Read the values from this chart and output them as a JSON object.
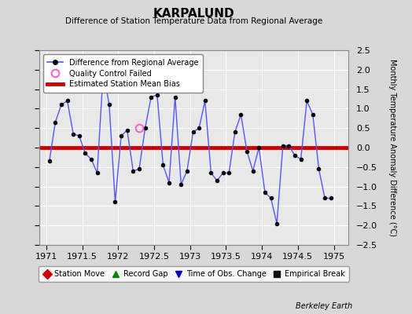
{
  "title": "KARPALUND",
  "subtitle": "Difference of Station Temperature Data from Regional Average",
  "ylabel": "Monthly Temperature Anomaly Difference (°C)",
  "xlim": [
    1970.9,
    1975.2
  ],
  "ylim": [
    -2.5,
    2.5
  ],
  "xticks": [
    1971,
    1971.5,
    1972,
    1972.5,
    1973,
    1973.5,
    1974,
    1974.5,
    1975
  ],
  "yticks": [
    -2.5,
    -2.0,
    -1.5,
    -1.0,
    -0.5,
    0,
    0.5,
    1.0,
    1.5,
    2.0,
    2.5
  ],
  "bias_line": 0.0,
  "bias_color": "#cc0000",
  "line_color": "#5555ff",
  "marker_color": "#000000",
  "background_color": "#e8e8e8",
  "fig_background": "#d8d8d8",
  "grid_color": "#ffffff",
  "x_data": [
    1971.042,
    1971.125,
    1971.208,
    1971.292,
    1971.375,
    1971.458,
    1971.542,
    1971.625,
    1971.708,
    1971.792,
    1971.875,
    1971.958,
    1972.042,
    1972.125,
    1972.208,
    1972.292,
    1972.375,
    1972.458,
    1972.542,
    1972.625,
    1972.708,
    1972.792,
    1972.875,
    1972.958,
    1973.042,
    1973.125,
    1973.208,
    1973.292,
    1973.375,
    1973.458,
    1973.542,
    1973.625,
    1973.708,
    1973.792,
    1973.875,
    1973.958,
    1974.042,
    1974.125,
    1974.208,
    1974.292,
    1974.375,
    1974.458,
    1974.542,
    1974.625,
    1974.708,
    1974.792,
    1974.875,
    1974.958
  ],
  "y_data": [
    -0.35,
    0.65,
    1.1,
    1.2,
    0.35,
    0.3,
    -0.15,
    -0.3,
    -0.65,
    1.95,
    1.1,
    -1.4,
    0.3,
    0.45,
    -0.6,
    -0.55,
    0.5,
    1.3,
    1.35,
    -0.45,
    -0.9,
    1.3,
    -0.95,
    -0.6,
    0.4,
    0.5,
    1.2,
    -0.65,
    -0.85,
    -0.65,
    -0.65,
    0.4,
    0.85,
    -0.1,
    -0.6,
    0.0,
    -1.15,
    -1.3,
    -1.95,
    0.05,
    0.05,
    -0.2,
    -0.3,
    1.2,
    0.85,
    -0.55,
    -1.3,
    -1.3
  ],
  "qc_x": [
    1972.29
  ],
  "qc_y": [
    0.5
  ],
  "berkeley_earth_text": "Berkeley Earth"
}
